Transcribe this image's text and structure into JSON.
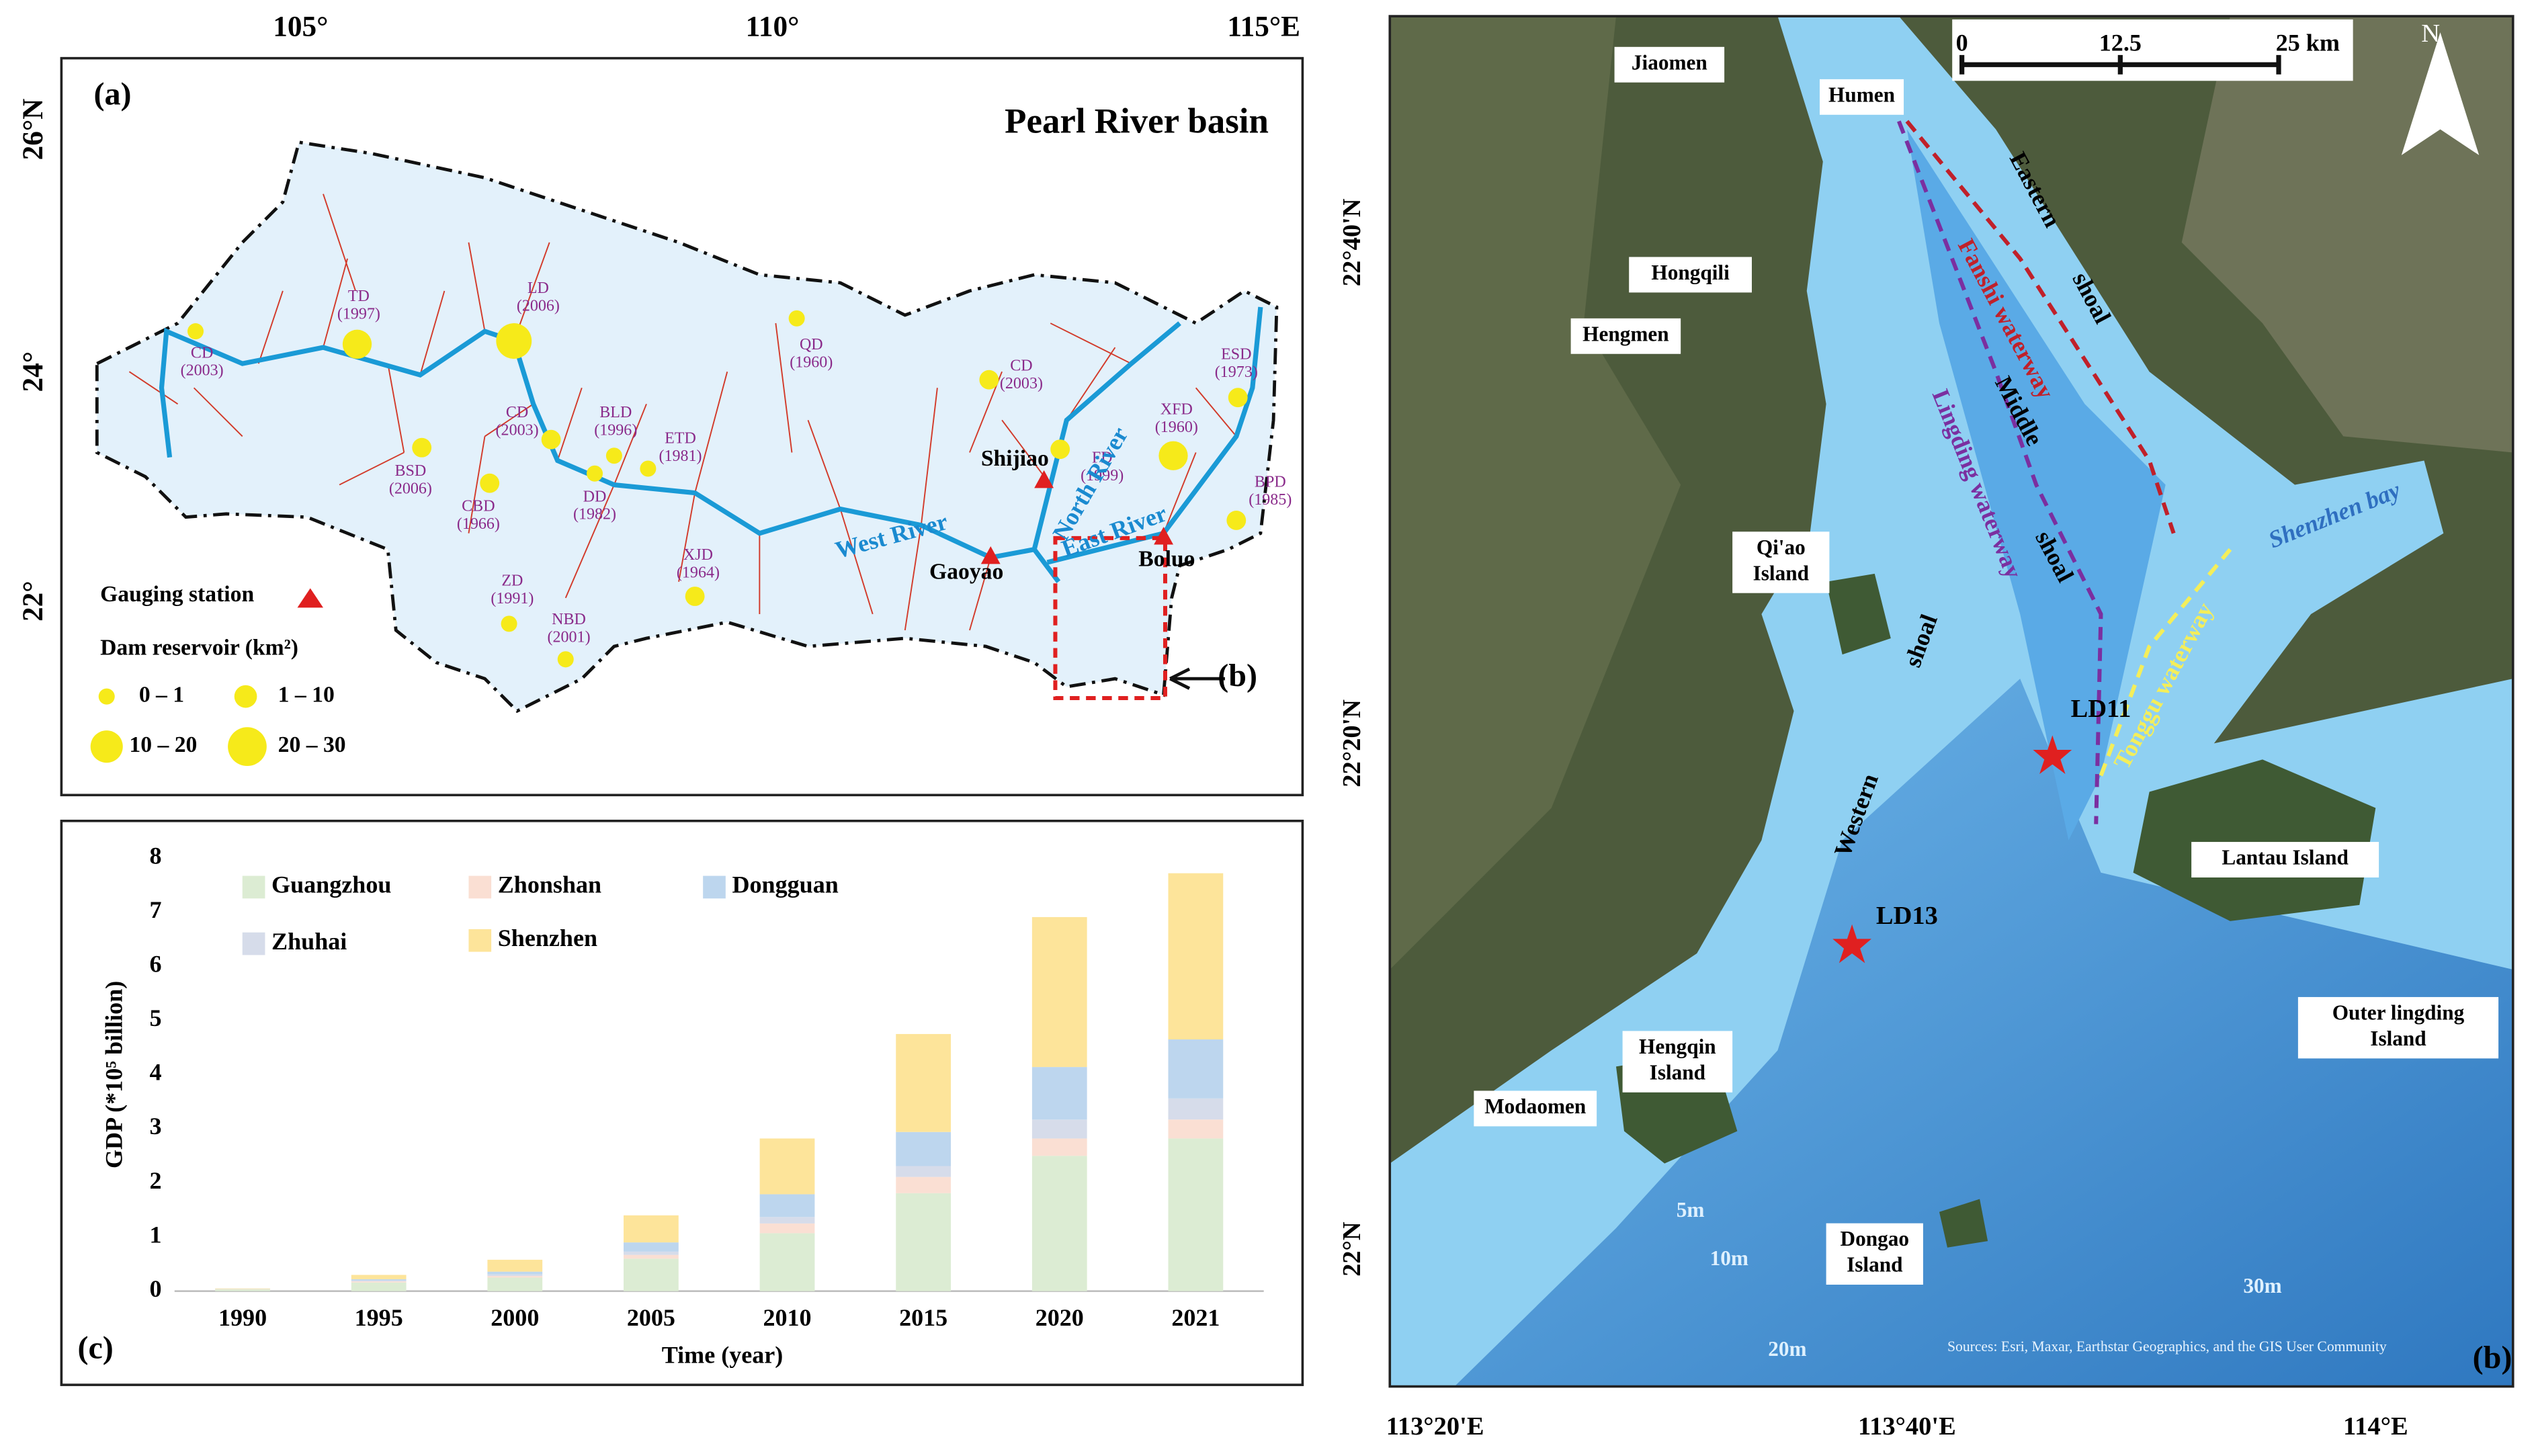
{
  "panel_a": {
    "label": "(a)",
    "title": "Pearl River basin",
    "lon_ticks": [
      "105°",
      "110°",
      "115°E"
    ],
    "lat_ticks": [
      "26°N",
      "24°",
      "22°"
    ],
    "rivers": [
      "West River",
      "North River",
      "East River"
    ],
    "stations": [
      "Shijiao",
      "Gaoyao",
      "Boluo"
    ],
    "dams": [
      {
        "name": "CD",
        "year": "(2003)"
      },
      {
        "name": "TD",
        "year": "(1997)"
      },
      {
        "name": "LD",
        "year": "(2006)"
      },
      {
        "name": "BSD",
        "year": "(2006)"
      },
      {
        "name": "CBD",
        "year": "(1966)"
      },
      {
        "name": "CD",
        "year": "(2003)"
      },
      {
        "name": "BLD",
        "year": "(1996)"
      },
      {
        "name": "DD",
        "year": "(1982)"
      },
      {
        "name": "ETD",
        "year": "(1981)"
      },
      {
        "name": "XJD",
        "year": "(1964)"
      },
      {
        "name": "ZD",
        "year": "(1991)"
      },
      {
        "name": "NBD",
        "year": "(2001)"
      },
      {
        "name": "QD",
        "year": "(1960)"
      },
      {
        "name": "CD",
        "year": "(2003)"
      },
      {
        "name": "FD",
        "year": "(1999)"
      },
      {
        "name": "XFD",
        "year": "(1960)"
      },
      {
        "name": "ESD",
        "year": "(1973)"
      },
      {
        "name": "BPD",
        "year": "(1985)"
      }
    ],
    "legend": {
      "station": "Gauging station",
      "dam": "Dam reservoir (km²)",
      "classes": [
        "0 – 1",
        "1 – 10",
        "10 – 20",
        "20 – 30"
      ]
    },
    "inset_label": "(b)"
  },
  "chart_data": {
    "type": "bar",
    "stacked": true,
    "label": "(c)",
    "xlabel": "Time (year)",
    "ylabel": "GDP (*10⁵ billion)",
    "categories": [
      "1990",
      "1995",
      "2000",
      "2005",
      "2010",
      "2015",
      "2020",
      "2021"
    ],
    "series": [
      {
        "name": "Guangzhou",
        "color": "#dcecd3",
        "values": [
          0.03,
          0.16,
          0.25,
          0.6,
          1.07,
          1.81,
          2.5,
          2.82
        ]
      },
      {
        "name": "Zhonshan",
        "color": "#fadfd3",
        "values": [
          0.003,
          0.02,
          0.03,
          0.07,
          0.18,
          0.3,
          0.32,
          0.35
        ]
      },
      {
        "name": "Zhuhai",
        "color": "#d6dcea",
        "values": [
          0.003,
          0.02,
          0.03,
          0.06,
          0.12,
          0.2,
          0.35,
          0.39
        ]
      },
      {
        "name": "Dongguan",
        "color": "#bdd6ee",
        "values": [
          0.003,
          0.02,
          0.05,
          0.17,
          0.42,
          0.63,
          0.97,
          1.09
        ]
      },
      {
        "name": "Shenzhen",
        "color": "#fde49a",
        "values": [
          0.01,
          0.08,
          0.22,
          0.5,
          1.03,
          1.81,
          2.77,
          3.07
        ]
      }
    ],
    "ylim": [
      0,
      8
    ],
    "yticks": [
      0,
      1,
      2,
      3,
      4,
      5,
      6,
      7,
      8
    ]
  },
  "panel_b": {
    "label": "(b)",
    "places": [
      [
        "Jiaomen"
      ],
      [
        "Humen"
      ],
      [
        "Hongqili"
      ],
      [
        "Hengmen"
      ],
      [
        "Qi'ao",
        "Island"
      ],
      [
        "Hengqin",
        "Island"
      ],
      [
        "Modaomen"
      ],
      [
        "Dongao",
        "Island"
      ],
      [
        "Lantau Island"
      ],
      [
        "Outer lingding",
        "Island"
      ]
    ],
    "stations": [
      "LD11",
      "LD13"
    ],
    "zones": [
      "Eastern",
      "shoal",
      "Fanshi waterway",
      "Lingding waterway",
      "Middle",
      "shoal",
      "shoal",
      "Western",
      "Tonggu waterway",
      "Shenzhen bay"
    ],
    "depths": [
      "5m",
      "10m",
      "20m",
      "30m"
    ],
    "scale": [
      "0",
      "12.5",
      "25 km"
    ],
    "north": "N",
    "lat_ticks": [
      "22°40'N",
      "22°20'N",
      "22°N"
    ],
    "lon_ticks": [
      "113°20'E",
      "113°40'E",
      "114°E"
    ],
    "source": "Sources: Esri, Maxar, Earthstar Geographics, and the GIS User Community"
  }
}
